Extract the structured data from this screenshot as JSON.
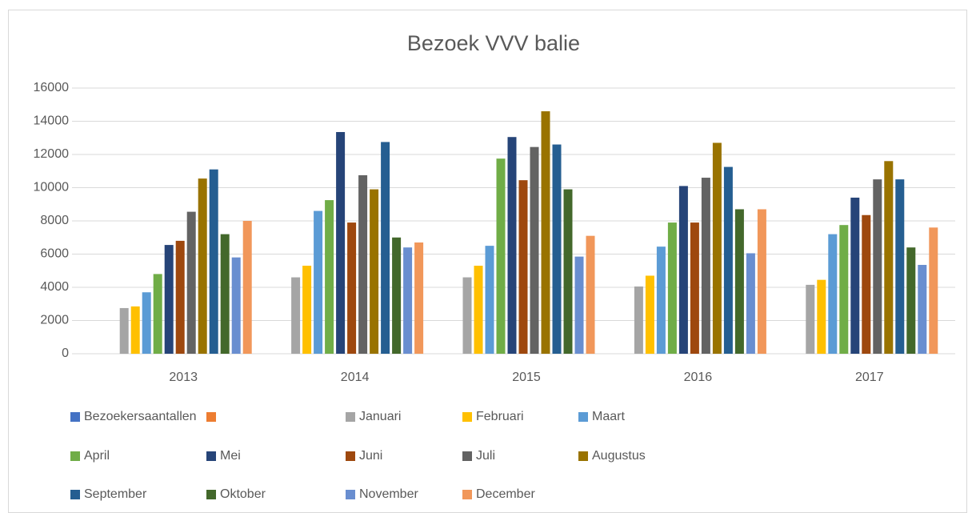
{
  "chart_data": {
    "type": "bar",
    "title": "Bezoek VVV balie",
    "categories": [
      "2013",
      "2014",
      "2015",
      "2016",
      "2017"
    ],
    "ylim": [
      0,
      16000
    ],
    "yticks": [
      0,
      2000,
      4000,
      6000,
      8000,
      10000,
      12000,
      14000,
      16000
    ],
    "grid": true,
    "series": [
      {
        "name": "Bezoekersaantallen",
        "color": "#4472c4",
        "values": [
          null,
          null,
          null,
          null,
          null
        ]
      },
      {
        "name": null,
        "color": "#ed7d31",
        "values": [
          null,
          null,
          null,
          null,
          null
        ]
      },
      {
        "name": "Januari",
        "color": "#a5a5a5",
        "values": [
          2750,
          4600,
          4600,
          4050,
          4150
        ]
      },
      {
        "name": "Februari",
        "color": "#ffc000",
        "values": [
          2850,
          5300,
          5300,
          4700,
          4450
        ]
      },
      {
        "name": "Maart",
        "color": "#5b9bd5",
        "values": [
          3700,
          8600,
          6500,
          6450,
          7200
        ]
      },
      {
        "name": "April",
        "color": "#70ad47",
        "values": [
          4800,
          9250,
          11750,
          7900,
          7750
        ]
      },
      {
        "name": "Mei",
        "color": "#264478",
        "values": [
          6550,
          13350,
          13050,
          10100,
          9400
        ]
      },
      {
        "name": "Juni",
        "color": "#9e480e",
        "values": [
          6800,
          7900,
          10450,
          7900,
          8350
        ]
      },
      {
        "name": "Juli",
        "color": "#636363",
        "values": [
          8550,
          10750,
          12450,
          10600,
          10500
        ]
      },
      {
        "name": "Augustus",
        "color": "#997300",
        "values": [
          10550,
          9900,
          14600,
          12700,
          11600
        ]
      },
      {
        "name": "September",
        "color": "#255e91",
        "values": [
          11100,
          12750,
          12600,
          11250,
          10500
        ]
      },
      {
        "name": "Oktober",
        "color": "#43682b",
        "values": [
          7200,
          7000,
          9900,
          8700,
          6400
        ]
      },
      {
        "name": "November",
        "color": "#698ed0",
        "values": [
          5800,
          6400,
          5850,
          6050,
          5350
        ]
      },
      {
        "name": "December",
        "color": "#f1975a",
        "values": [
          8000,
          6700,
          7100,
          8700,
          7600
        ]
      }
    ]
  }
}
